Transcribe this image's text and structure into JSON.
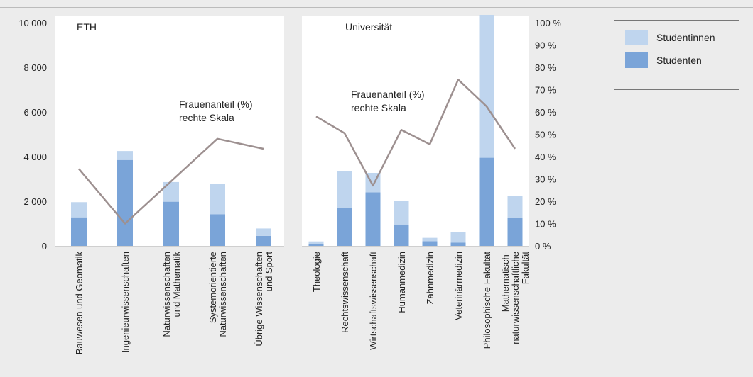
{
  "chart_data": [
    {
      "panel": "ETH",
      "type": "bar",
      "stacked": true,
      "title": "ETH",
      "categories": [
        [
          "Bauwesen und Geomatik"
        ],
        [
          "Ingenieurwissenschaften"
        ],
        [
          "Naturwissenschaften",
          "und Mathematik"
        ],
        [
          "Systemorientierte",
          "Naturwissenschaften"
        ],
        [
          "Übrige Wissenschaften",
          "und Sport"
        ]
      ],
      "series": [
        {
          "name": "Studenten",
          "values": [
            1280,
            3850,
            1980,
            1420,
            450
          ]
        },
        {
          "name": "Studentinnen",
          "values": [
            680,
            400,
            880,
            1360,
            330
          ]
        },
        {
          "name": "Frauenanteil (%) rechte Skala",
          "axis": "right",
          "values": [
            34.5,
            10,
            29,
            48,
            43.5
          ]
        }
      ],
      "y_left": {
        "min": 0,
        "max": 10000,
        "ticks": [
          "0",
          "2 000",
          "4 000",
          "6 000",
          "8 000",
          "10 000"
        ]
      },
      "annotation": [
        "Frauenanteil (%)",
        "rechte Skala"
      ]
    },
    {
      "panel": "Universität",
      "type": "bar",
      "stacked": true,
      "title": "Universität",
      "categories": [
        [
          "Theologie"
        ],
        [
          "Rechtswissenschaft"
        ],
        [
          "Wirtschaftswissenschaft"
        ],
        [
          "Humanmedizin"
        ],
        [
          "Zahnmedizin"
        ],
        [
          "Veterinärmedizin"
        ],
        [
          "Philosophische Fakultät"
        ],
        [
          "Mathematisch-",
          "naturwissenschaftliche",
          "Fakultät"
        ]
      ],
      "series": [
        {
          "name": "Studenten",
          "values": [
            80,
            1700,
            2400,
            960,
            210,
            150,
            3950,
            1270
          ]
        },
        {
          "name": "Studentinnen",
          "values": [
            120,
            1650,
            870,
            1040,
            150,
            470,
            6400,
            980
          ]
        },
        {
          "name": "Frauenanteil (%) rechte Skala",
          "axis": "right",
          "values": [
            58,
            50.5,
            27,
            52,
            45.5,
            74.5,
            62.5,
            43.5
          ]
        }
      ],
      "y_right": {
        "min": 0,
        "max": 100,
        "ticks": [
          "0 %",
          "10 %",
          "20 %",
          "30 %",
          "40 %",
          "50 %",
          "60 %",
          "70 %",
          "80 %",
          "90 %",
          "100 %"
        ]
      },
      "annotation": [
        "Frauenanteil (%)",
        "rechte Skala"
      ]
    }
  ],
  "legend": {
    "position": "top-right",
    "items": [
      {
        "label": "Studentinnen",
        "color": "#bfd5ee"
      },
      {
        "label": "Studenten",
        "color": "#7aa4d8"
      }
    ]
  },
  "colors": {
    "studenten": "#7aa4d8",
    "studentinnen": "#bfd5ee",
    "line": "#9d9090",
    "panel_bg": "#ffffff",
    "background": "#ececec"
  }
}
